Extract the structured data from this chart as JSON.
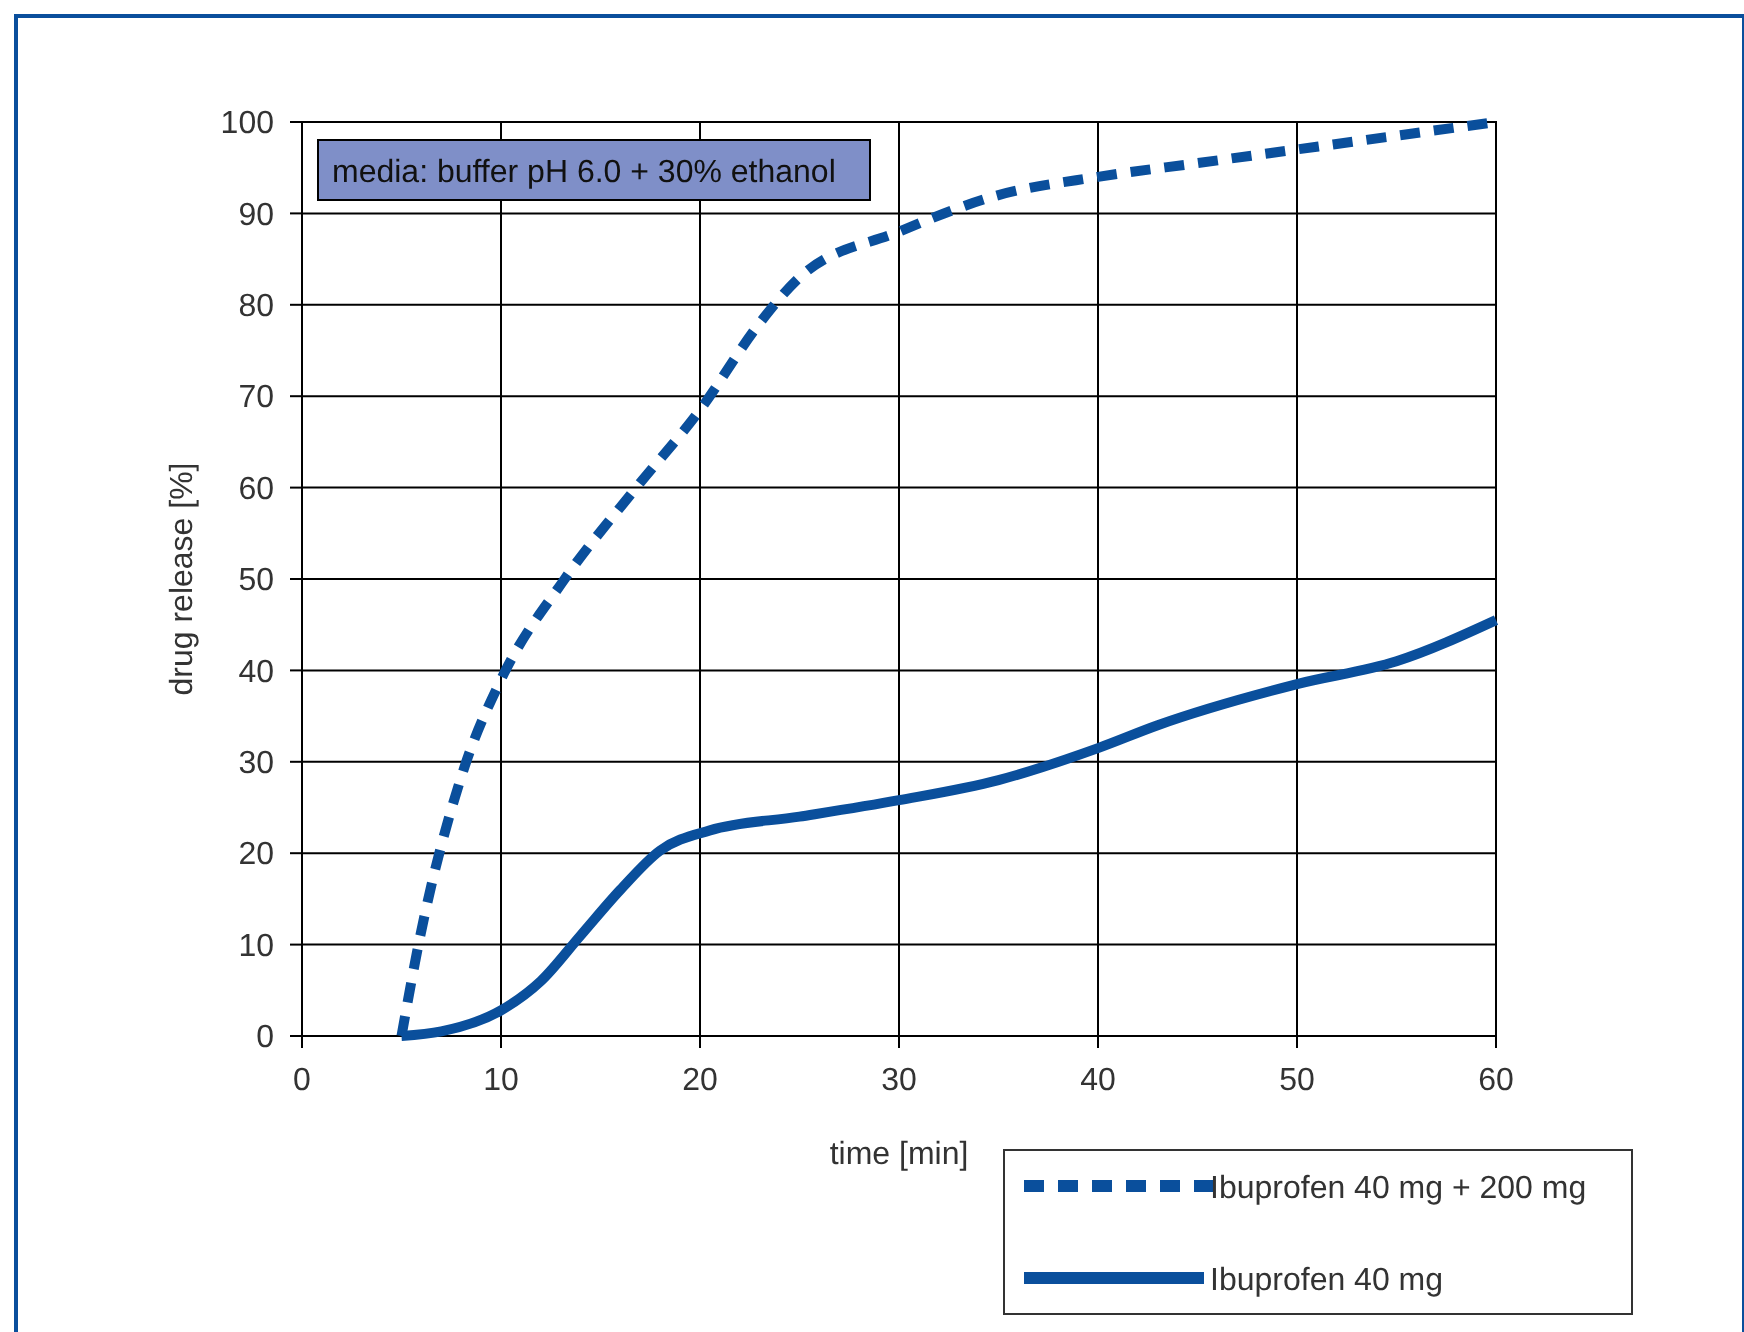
{
  "chart_data": {
    "type": "line",
    "xlabel": "time [min]",
    "ylabel": "drug release [%]",
    "xlim": [
      0,
      60
    ],
    "ylim": [
      0,
      100
    ],
    "xticks": [
      0,
      10,
      20,
      30,
      40,
      50,
      60
    ],
    "yticks": [
      0,
      10,
      20,
      30,
      40,
      50,
      60,
      70,
      80,
      90,
      100
    ],
    "grid": true,
    "legend": "bottom right",
    "annotations": [
      "media: buffer pH 6.0 + 30% ethanol"
    ],
    "series": [
      {
        "name": "Ibuprofen 40 mg + 200 mg",
        "color": "#0a4f9c",
        "line_style": "dashed",
        "x": [
          5,
          5.9,
          8.1,
          10,
          13.2,
          16.8,
          20,
          23,
          25,
          30,
          35,
          40,
          45,
          50,
          55,
          60
        ],
        "values": [
          0,
          10.5,
          29,
          39,
          50,
          60,
          68.5,
          78,
          83,
          88,
          92,
          94,
          95.5,
          97,
          98.5,
          100
        ]
      },
      {
        "name": "Ibuprofen 40 mg",
        "color": "#0a4f9c",
        "line_style": "solid",
        "x": [
          5,
          7,
          10,
          12,
          14,
          16,
          18,
          20.5,
          25,
          30,
          35,
          40,
          43,
          50,
          55,
          60
        ],
        "values": [
          0,
          0.5,
          2.8,
          6,
          11,
          16,
          20.3,
          22.5,
          24,
          25.8,
          28,
          31.5,
          34,
          38.5,
          41,
          45.5
        ]
      }
    ]
  }
}
